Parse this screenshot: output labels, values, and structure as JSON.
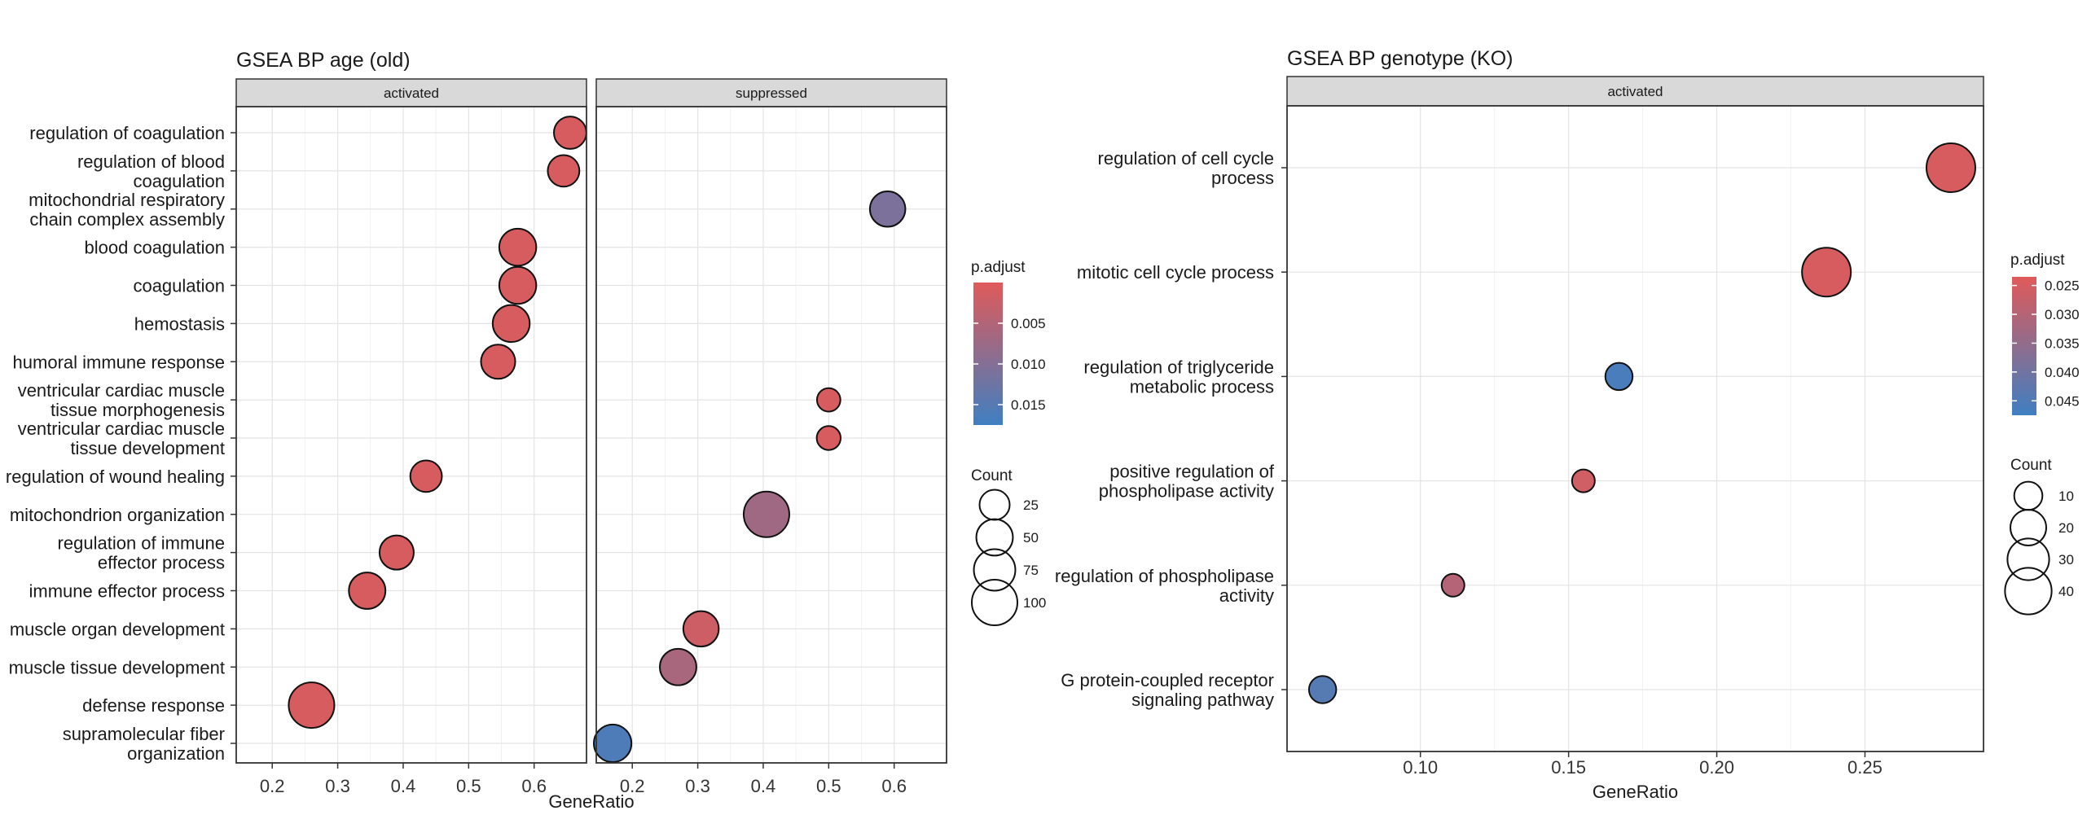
{
  "chart_data": [
    {
      "type": "scatter",
      "title": "GSEA BP age (old)",
      "xlabel": "GeneRatio",
      "ylabel": "",
      "categories": [
        "regulation of coagulation",
        "regulation of blood coagulation",
        "mitochondrial respiratory chain complex assembly",
        "blood coagulation",
        "coagulation",
        "hemostasis",
        "humoral immune response",
        "ventricular cardiac muscle tissue morphogenesis",
        "ventricular cardiac muscle tissue development",
        "regulation of wound healing",
        "mitochondrion organization",
        "regulation of immune effector process",
        "immune effector process",
        "muscle organ development",
        "muscle tissue development",
        "defense response",
        "supramolecular fiber organization"
      ],
      "category_labels": [
        [
          "regulation of coagulation"
        ],
        [
          "regulation of blood",
          "coagulation"
        ],
        [
          "mitochondrial respiratory",
          "chain complex assembly"
        ],
        [
          "blood coagulation"
        ],
        [
          "coagulation"
        ],
        [
          "hemostasis"
        ],
        [
          "humoral immune response"
        ],
        [
          "ventricular cardiac muscle",
          "tissue morphogenesis"
        ],
        [
          "ventricular cardiac muscle",
          "tissue development"
        ],
        [
          "regulation of wound healing"
        ],
        [
          "mitochondrion organization"
        ],
        [
          "regulation of immune",
          "effector process"
        ],
        [
          "immune effector process"
        ],
        [
          "muscle organ development"
        ],
        [
          "muscle tissue development"
        ],
        [
          "defense response"
        ],
        [
          "supramolecular fiber",
          "organization"
        ]
      ],
      "xticks": [
        0.2,
        0.3,
        0.4,
        0.5,
        0.6
      ],
      "xtick_labels": [
        "0.2",
        "0.3",
        "0.4",
        "0.5",
        "0.6"
      ],
      "facets": [
        {
          "name": "activated",
          "xlim": [
            0.145,
            0.68
          ],
          "points": [
            {
              "term": "regulation of coagulation",
              "x": 0.655,
              "p_adjust": 0.001,
              "count": 33
            },
            {
              "term": "regulation of blood coagulation",
              "x": 0.645,
              "p_adjust": 0.001,
              "count": 30
            },
            {
              "term": "blood coagulation",
              "x": 0.575,
              "p_adjust": 0.001,
              "count": 52
            },
            {
              "term": "coagulation",
              "x": 0.575,
              "p_adjust": 0.001,
              "count": 52
            },
            {
              "term": "hemostasis",
              "x": 0.565,
              "p_adjust": 0.001,
              "count": 52
            },
            {
              "term": "humoral immune response",
              "x": 0.545,
              "p_adjust": 0.001,
              "count": 40
            },
            {
              "term": "regulation of wound healing",
              "x": 0.435,
              "p_adjust": 0.001,
              "count": 30
            },
            {
              "term": "regulation of immune effector process",
              "x": 0.39,
              "p_adjust": 0.001,
              "count": 40
            },
            {
              "term": "immune effector process",
              "x": 0.345,
              "p_adjust": 0.001,
              "count": 50
            },
            {
              "term": "defense response",
              "x": 0.26,
              "p_adjust": 0.001,
              "count": 100
            }
          ]
        },
        {
          "name": "suppressed",
          "xlim": [
            0.145,
            0.68
          ],
          "points": [
            {
              "term": "mitochondrial respiratory chain complex assembly",
              "x": 0.59,
              "p_adjust": 0.011,
              "count": 45
            },
            {
              "term": "ventricular cardiac muscle tissue morphogenesis",
              "x": 0.5,
              "p_adjust": 0.001,
              "count": 8
            },
            {
              "term": "ventricular cardiac muscle tissue development",
              "x": 0.5,
              "p_adjust": 0.001,
              "count": 9
            },
            {
              "term": "mitochondrion organization",
              "x": 0.405,
              "p_adjust": 0.007,
              "count": 100
            },
            {
              "term": "muscle organ development",
              "x": 0.305,
              "p_adjust": 0.002,
              "count": 45
            },
            {
              "term": "muscle tissue development",
              "x": 0.27,
              "p_adjust": 0.006,
              "count": 50
            },
            {
              "term": "supramolecular fiber organization",
              "x": 0.17,
              "p_adjust": 0.016,
              "count": 55
            }
          ]
        }
      ],
      "color_legend": {
        "title": "p.adjust",
        "range": [
          0.0,
          0.0175
        ],
        "ticks": [
          0.005,
          0.01,
          0.015
        ],
        "tick_labels": [
          "0.005",
          "0.010",
          "0.015"
        ],
        "low_color": "#e05a5a",
        "high_color": "#3f7fc1"
      },
      "size_legend": {
        "title": "Count",
        "values": [
          25,
          50,
          75,
          100
        ],
        "labels": [
          "25",
          "50",
          "75",
          "100"
        ],
        "max": 100
      },
      "grid": true,
      "legend_position": "right"
    },
    {
      "type": "scatter",
      "title": "GSEA BP genotype (KO)",
      "xlabel": "GeneRatio",
      "ylabel": "",
      "categories": [
        "regulation of cell cycle process",
        "mitotic cell cycle process",
        "regulation of triglyceride metabolic process",
        "positive regulation of phospholipase activity",
        "regulation of phospholipase activity",
        "G protein-coupled receptor signaling pathway"
      ],
      "category_labels": [
        [
          "regulation of cell cycle",
          "process"
        ],
        [
          "mitotic cell cycle process"
        ],
        [
          "regulation of triglyceride",
          "metabolic process"
        ],
        [
          "positive regulation of",
          "phospholipase activity"
        ],
        [
          "regulation of phospholipase",
          "activity"
        ],
        [
          "G protein-coupled receptor",
          "signaling pathway"
        ]
      ],
      "xticks": [
        0.1,
        0.15,
        0.2,
        0.25
      ],
      "xtick_labels": [
        "0.10",
        "0.15",
        "0.20",
        "0.25"
      ],
      "facets": [
        {
          "name": "activated",
          "xlim": [
            0.055,
            0.29
          ],
          "points": [
            {
              "term": "regulation of cell cycle process",
              "x": 0.279,
              "p_adjust": 0.025,
              "count": 45
            },
            {
              "term": "mitotic cell cycle process",
              "x": 0.237,
              "p_adjust": 0.025,
              "count": 45
            },
            {
              "term": "regulation of triglyceride metabolic process",
              "x": 0.167,
              "p_adjust": 0.046,
              "count": 9
            },
            {
              "term": "positive regulation of phospholipase activity",
              "x": 0.155,
              "p_adjust": 0.026,
              "count": 5
            },
            {
              "term": "regulation of phospholipase activity",
              "x": 0.111,
              "p_adjust": 0.03,
              "count": 5
            },
            {
              "term": "G protein-coupled receptor signaling pathway",
              "x": 0.067,
              "p_adjust": 0.044,
              "count": 9
            }
          ]
        }
      ],
      "color_legend": {
        "title": "p.adjust",
        "range": [
          0.0235,
          0.0475
        ],
        "ticks": [
          0.025,
          0.03,
          0.035,
          0.04,
          0.045
        ],
        "tick_labels": [
          "0.025",
          "0.030",
          "0.035",
          "0.040",
          "0.045"
        ],
        "low_color": "#e05a5a",
        "high_color": "#3f7fc1"
      },
      "size_legend": {
        "title": "Count",
        "values": [
          10,
          20,
          30,
          40
        ],
        "labels": [
          "10",
          "20",
          "30",
          "40"
        ],
        "max": 45
      },
      "grid": true,
      "legend_position": "right"
    }
  ]
}
